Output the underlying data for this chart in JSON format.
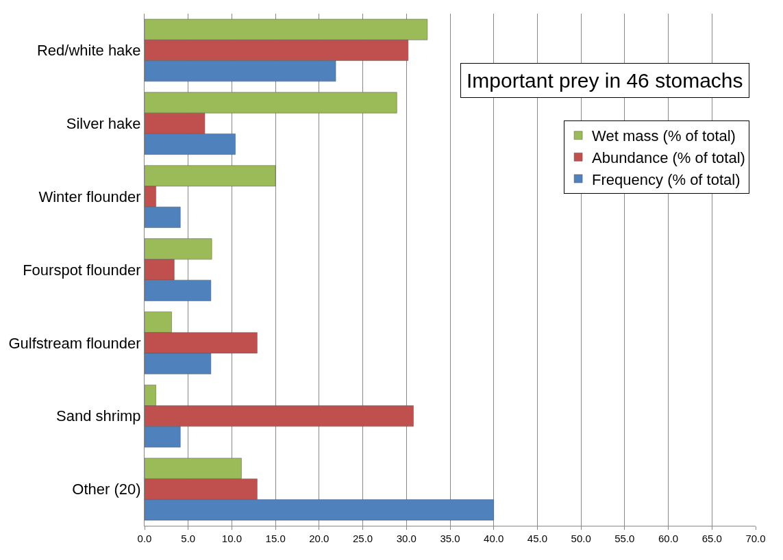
{
  "chart_data": {
    "type": "bar",
    "orientation": "horizontal",
    "title": "Important prey in 46 stomachs",
    "categories": [
      "Red/white hake",
      "Silver hake",
      "Winter flounder",
      "Fourspot flounder",
      "Gulfstream flounder",
      "Sand shrimp",
      "Other (20)"
    ],
    "series": [
      {
        "name": "Wet mass (% of total)",
        "color": "#9bbb59",
        "values": [
          32.4,
          28.9,
          15.0,
          7.7,
          3.1,
          1.3,
          11.1
        ]
      },
      {
        "name": "Abundance (% of total)",
        "color": "#c0504d",
        "values": [
          30.2,
          6.9,
          1.3,
          3.4,
          12.9,
          30.8,
          12.9
        ]
      },
      {
        "name": "Frequency (% of total)",
        "color": "#4f81bd",
        "values": [
          21.9,
          10.4,
          4.1,
          7.6,
          7.6,
          4.1,
          40.0
        ]
      }
    ],
    "xlim": [
      0,
      70
    ],
    "xticks": [
      {
        "value": 0,
        "label": "0.0"
      },
      {
        "value": 5,
        "label": "5.0"
      },
      {
        "value": 10,
        "label": "10.0"
      },
      {
        "value": 15,
        "label": "15.0"
      },
      {
        "value": 20,
        "label": "20.0"
      },
      {
        "value": 25,
        "label": "25.0"
      },
      {
        "value": 30,
        "label": "30.0"
      },
      {
        "value": 35,
        "label": "35.0"
      },
      {
        "value": 40,
        "label": "40.0"
      },
      {
        "value": 45,
        "label": "45.0"
      },
      {
        "value": 50,
        "label": "50.0"
      },
      {
        "value": 55,
        "label": "55.0"
      },
      {
        "value": 60,
        "label": "60.0"
      },
      {
        "value": 65,
        "label": "65.0"
      },
      {
        "value": 70,
        "label": "70.0"
      }
    ],
    "grid": "x",
    "legend": "right"
  }
}
